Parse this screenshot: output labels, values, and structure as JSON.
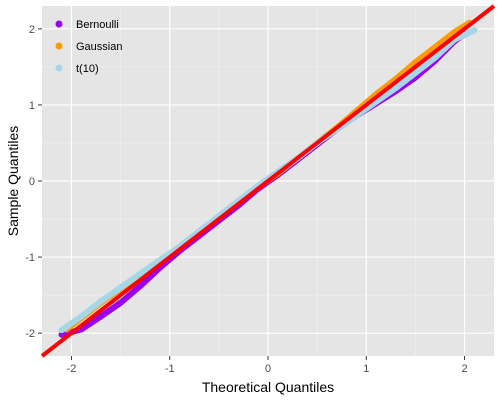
{
  "chart_data": {
    "type": "scatter",
    "title": "",
    "xlabel": "Theoretical Quantiles",
    "ylabel": "Sample Quantiles",
    "xlim": [
      -2.3,
      2.3
    ],
    "ylim": [
      -2.3,
      2.3
    ],
    "x_ticks": [
      "-2",
      "-1",
      "0",
      "1",
      "2"
    ],
    "y_ticks": [
      "-2",
      "-1",
      "0",
      "1",
      "2"
    ],
    "grid": true,
    "legend_position": "top-left",
    "series": [
      {
        "name": "Bernoulli",
        "color": "#9a00f0",
        "x": [
          -2.1,
          -1.9,
          -1.7,
          -1.5,
          -1.3,
          -1.1,
          -0.9,
          -0.7,
          -0.5,
          -0.3,
          -0.1,
          0.1,
          0.3,
          0.5,
          0.7,
          0.9,
          1.1,
          1.3,
          1.5,
          1.7,
          1.9,
          2.0
        ],
        "y": [
          -2.02,
          -1.95,
          -1.78,
          -1.6,
          -1.38,
          -1.14,
          -0.92,
          -0.72,
          -0.52,
          -0.32,
          -0.1,
          0.08,
          0.28,
          0.48,
          0.68,
          0.86,
          1.02,
          1.18,
          1.36,
          1.58,
          1.84,
          1.93
        ]
      },
      {
        "name": "Gaussian",
        "color": "#ff9a00",
        "x": [
          -2.05,
          -1.9,
          -1.7,
          -1.5,
          -1.3,
          -1.1,
          -0.9,
          -0.7,
          -0.5,
          -0.3,
          -0.1,
          0.1,
          0.3,
          0.5,
          0.7,
          0.9,
          1.1,
          1.3,
          1.5,
          1.7,
          1.9,
          2.05
        ],
        "y": [
          -1.95,
          -1.8,
          -1.6,
          -1.42,
          -1.25,
          -1.06,
          -0.88,
          -0.68,
          -0.48,
          -0.28,
          -0.08,
          0.1,
          0.3,
          0.5,
          0.7,
          0.92,
          1.14,
          1.34,
          1.56,
          1.76,
          1.96,
          2.08
        ]
      },
      {
        "name": "t(10)",
        "color": "#a6d6e8",
        "x": [
          -2.1,
          -1.9,
          -1.7,
          -1.5,
          -1.3,
          -1.1,
          -0.9,
          -0.7,
          -0.5,
          -0.3,
          -0.1,
          0.1,
          0.3,
          0.5,
          0.7,
          0.9,
          1.1,
          1.3,
          1.5,
          1.7,
          1.9,
          2.1
        ],
        "y": [
          -1.96,
          -1.78,
          -1.58,
          -1.4,
          -1.22,
          -1.04,
          -0.86,
          -0.66,
          -0.46,
          -0.26,
          -0.06,
          0.12,
          0.3,
          0.5,
          0.68,
          0.86,
          1.04,
          1.22,
          1.42,
          1.62,
          1.86,
          1.98
        ]
      }
    ],
    "reference_line": {
      "color": "#ff0000",
      "intercept": 0,
      "slope": 1
    }
  }
}
